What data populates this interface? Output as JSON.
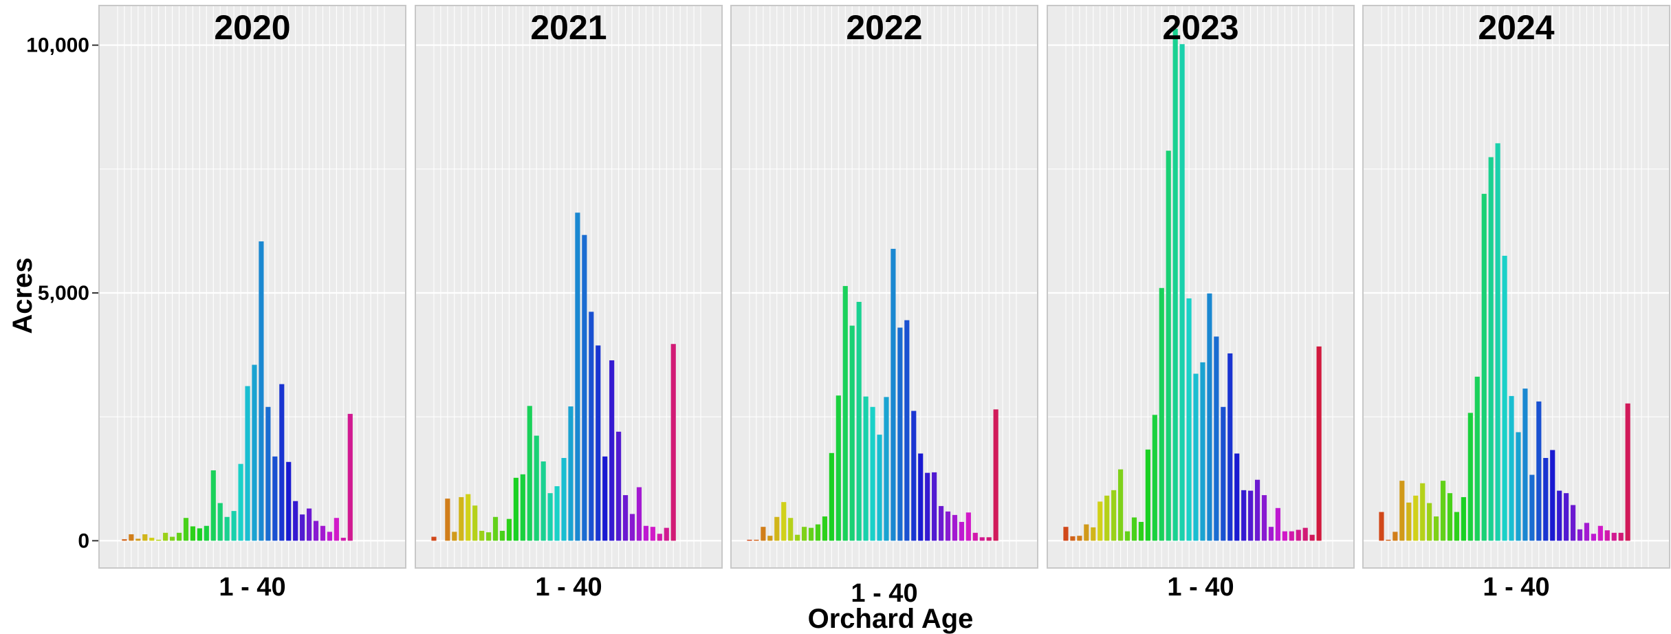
{
  "chart_data": {
    "type": "bar",
    "xlabel": "Orchard Age",
    "ylabel": "Acres",
    "ylim": [
      -550,
      10800
    ],
    "yticks": [
      0,
      5000,
      10000
    ],
    "ytick_labels": [
      "0",
      "5,000",
      "10,000"
    ],
    "grid": true,
    "legend": "none",
    "color_scale": "hue by orchard age 1-40",
    "facets": [
      {
        "title": "2020",
        "x_tick_label": "1 - 40",
        "values": [
          0,
          30,
          130,
          40,
          130,
          60,
          20,
          160,
          80,
          160,
          460,
          290,
          250,
          300,
          1420,
          760,
          480,
          600,
          1550,
          3120,
          3550,
          6040,
          2700,
          1700,
          3160,
          1590,
          800,
          530,
          650,
          400,
          300,
          180,
          460,
          60,
          2560,
          0,
          0,
          0,
          0,
          0
        ]
      },
      {
        "title": "2021",
        "x_tick_label": "1 - 40",
        "values": [
          80,
          0,
          850,
          180,
          880,
          940,
          710,
          200,
          170,
          480,
          200,
          440,
          1270,
          1340,
          2720,
          2120,
          1600,
          960,
          1100,
          1670,
          2710,
          6620,
          6170,
          4620,
          3940,
          1700,
          3640,
          2200,
          920,
          540,
          1080,
          300,
          280,
          140,
          260,
          3970,
          0,
          0,
          0,
          0
        ]
      },
      {
        "title": "2022",
        "x_tick_label": "1 - 40",
        "values": [
          20,
          20,
          280,
          100,
          480,
          780,
          460,
          120,
          280,
          260,
          330,
          490,
          1770,
          2930,
          5140,
          4340,
          4820,
          2910,
          2700,
          2140,
          2900,
          5890,
          4300,
          4450,
          2620,
          1760,
          1370,
          1380,
          700,
          590,
          520,
          380,
          570,
          160,
          70,
          70,
          2650,
          0,
          0,
          0
        ]
      },
      {
        "title": "2023",
        "x_tick_label": "1 - 40",
        "values": [
          280,
          90,
          100,
          330,
          270,
          790,
          910,
          1020,
          1440,
          190,
          470,
          380,
          1840,
          2540,
          5100,
          7870,
          10330,
          10020,
          4890,
          3370,
          3600,
          4990,
          4120,
          2700,
          3780,
          1760,
          1020,
          1010,
          1230,
          920,
          280,
          660,
          190,
          190,
          220,
          260,
          120,
          3920,
          0,
          0
        ]
      },
      {
        "title": "2024",
        "x_tick_label": "1 - 40",
        "values": [
          580,
          20,
          180,
          1210,
          770,
          910,
          1160,
          760,
          490,
          1210,
          960,
          580,
          880,
          2580,
          3310,
          7000,
          7740,
          8020,
          5750,
          2920,
          2190,
          3070,
          1330,
          2810,
          1670,
          1830,
          1010,
          960,
          720,
          230,
          360,
          140,
          300,
          210,
          160,
          160,
          2770,
          0,
          0,
          0
        ]
      }
    ]
  }
}
